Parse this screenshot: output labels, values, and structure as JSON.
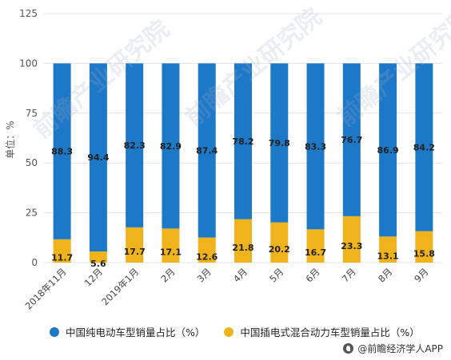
{
  "chart_data": {
    "type": "bar",
    "stacked": true,
    "title": "",
    "xlabel": "",
    "ylabel": "单位：%",
    "ylim": [
      0,
      125
    ],
    "yticks": [
      0,
      25,
      50,
      75,
      100,
      125
    ],
    "grid": true,
    "legend_position": "bottom",
    "categories": [
      "2018年11月",
      "12月",
      "2019年1月",
      "2月",
      "3月",
      "4月",
      "5月",
      "6月",
      "7月",
      "8月",
      "9月"
    ],
    "series": [
      {
        "name": "中国插电式混合动力车型销量占比（%）",
        "color": "#f0b31c",
        "values": [
          11.7,
          5.6,
          17.7,
          17.1,
          12.6,
          21.8,
          20.2,
          16.7,
          23.3,
          13.1,
          15.8
        ]
      },
      {
        "name": "中国纯电动车型销量占比（%）",
        "color": "#1e78c8",
        "values": [
          88.3,
          94.4,
          82.3,
          82.9,
          87.4,
          78.2,
          79.8,
          83.3,
          76.7,
          86.9,
          84.2
        ]
      }
    ]
  },
  "legend": {
    "bev_label": "中国纯电动车型销量占比（%）",
    "phev_label": "中国插电式混合动力车型销量占比（%）"
  },
  "source": {
    "text": "@前瞻经济学人APP"
  },
  "watermark": {
    "text": "前瞻产业研究院"
  },
  "colors": {
    "bev": "#1e78c8",
    "phev": "#f0b31c",
    "grid": "#e3e3e3"
  }
}
